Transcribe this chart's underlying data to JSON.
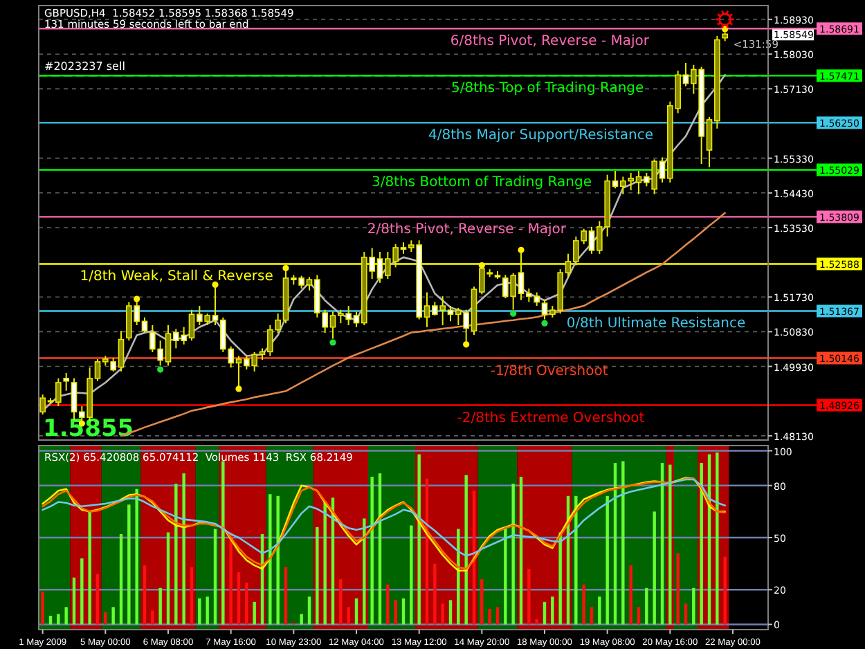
{
  "chart_data": [
    {
      "type": "candlestick",
      "title": "GBPUSD,H4  1.58452 1.58595 1.58368 1.58549",
      "subtitle": "131 minutes 59 seconds left to bar end",
      "categories": [
        null,
        null,
        null,
        null,
        null,
        null,
        null,
        null,
        null,
        null,
        null,
        null,
        null,
        null,
        null,
        null,
        null,
        null,
        null,
        null,
        null,
        null,
        null,
        null,
        null,
        null,
        null,
        null,
        null,
        null,
        null,
        null,
        null,
        null,
        null,
        null,
        null,
        null,
        null,
        null,
        null,
        null,
        null,
        null,
        null,
        null,
        null,
        null,
        null,
        null,
        null,
        null,
        null,
        null,
        null,
        null,
        null,
        null,
        null,
        null,
        null,
        null,
        null,
        null,
        null,
        null,
        null,
        null,
        null,
        null,
        null,
        null,
        null,
        null,
        null,
        null,
        null,
        null,
        null,
        null,
        null,
        null,
        null,
        null,
        null,
        null,
        null,
        null,
        null
      ],
      "ohlc": [
        [
          1.4875,
          1.492,
          1.4868,
          1.4911
        ],
        [
          1.4904,
          1.4911,
          1.4897,
          1.4904
        ],
        [
          1.49,
          1.4962,
          1.489,
          1.4951
        ],
        [
          1.4962,
          1.4976,
          1.493,
          1.4955
        ],
        [
          1.4951,
          1.4962,
          1.4853,
          1.4875
        ],
        [
          1.4875,
          1.489,
          1.4853,
          1.4861
        ],
        [
          1.4861,
          1.499,
          1.485,
          1.4962
        ],
        [
          1.4962,
          1.5012,
          1.4955,
          1.5005
        ],
        [
          1.5005,
          1.502,
          1.4995,
          1.5012
        ],
        [
          1.5005,
          1.5015,
          1.498,
          1.4984
        ],
        [
          1.4991,
          1.5085,
          1.498,
          1.5063
        ],
        [
          1.5067,
          1.516,
          1.506,
          1.515
        ],
        [
          1.515,
          1.5161,
          1.51,
          1.511
        ],
        [
          1.511,
          1.512,
          1.5081,
          1.5085
        ],
        [
          1.5081,
          1.51,
          1.503,
          1.5038
        ],
        [
          1.5038,
          1.506,
          1.4995,
          1.5009
        ],
        [
          1.5005,
          1.51,
          1.4995,
          1.5078
        ],
        [
          1.5081,
          1.509,
          1.504,
          1.506
        ],
        [
          1.5074,
          1.5095,
          1.505,
          1.506
        ],
        [
          1.5067,
          1.514,
          1.506,
          1.5128
        ],
        [
          1.5128,
          1.515,
          1.51,
          1.511
        ],
        [
          1.511,
          1.513,
          1.51,
          1.5125
        ],
        [
          1.5125,
          1.52,
          1.51,
          1.5113
        ],
        [
          1.5113,
          1.512,
          1.503,
          1.5038
        ],
        [
          1.5038,
          1.5045,
          1.499,
          1.5002
        ],
        [
          1.5002,
          1.502,
          1.494,
          1.5012
        ],
        [
          1.5012,
          1.502,
          1.4985,
          1.4995
        ],
        [
          1.4995,
          1.503,
          1.498,
          1.5024
        ],
        [
          1.5024,
          1.504,
          1.501,
          1.5031
        ],
        [
          1.5031,
          1.51,
          1.502,
          1.5088
        ],
        [
          1.5088,
          1.513,
          1.508,
          1.5113
        ],
        [
          1.5113,
          1.524,
          1.5105,
          1.5222
        ],
        [
          1.5222,
          1.523,
          1.5205,
          1.5218
        ],
        [
          1.5222,
          1.5228,
          1.5195,
          1.5204
        ],
        [
          1.5204,
          1.5225,
          1.519,
          1.5218
        ],
        [
          1.5218,
          1.523,
          1.512,
          1.5132
        ],
        [
          1.5132,
          1.514,
          1.508,
          1.5095
        ],
        [
          1.5095,
          1.5135,
          1.5065,
          1.5125
        ],
        [
          1.5125,
          1.514,
          1.5105,
          1.513
        ],
        [
          1.513,
          1.515,
          1.51,
          1.5115
        ],
        [
          1.5125,
          1.5135,
          1.5095,
          1.5106
        ],
        [
          1.5106,
          1.529,
          1.51,
          1.5276
        ],
        [
          1.5276,
          1.53,
          1.522,
          1.524
        ],
        [
          1.5272,
          1.529,
          1.521,
          1.5222
        ],
        [
          1.5229,
          1.529,
          1.522,
          1.5272
        ],
        [
          1.5265,
          1.531,
          1.525,
          1.5301
        ],
        [
          1.5301,
          1.5315,
          1.5285,
          1.5297
        ],
        [
          1.5301,
          1.532,
          1.529,
          1.5308
        ],
        [
          1.5308,
          1.532,
          1.5115,
          1.5121
        ],
        [
          1.5121,
          1.5185,
          1.5095,
          1.515
        ],
        [
          1.515,
          1.516,
          1.5125,
          1.5128
        ],
        [
          1.5139,
          1.5175,
          1.51,
          1.515
        ],
        [
          1.5139,
          1.515,
          1.511,
          1.5128
        ],
        [
          1.5128,
          1.5145,
          1.51,
          1.5139
        ],
        [
          1.5132,
          1.514,
          1.5056,
          1.5092
        ],
        [
          1.5085,
          1.52,
          1.5075,
          1.5193
        ],
        [
          1.5186,
          1.525,
          1.518,
          1.5247
        ],
        [
          1.5236,
          1.5245,
          1.5225,
          1.5236
        ],
        [
          1.5229,
          1.524,
          1.522,
          1.5225
        ],
        [
          1.5222,
          1.523,
          1.517,
          1.5175
        ],
        [
          1.5175,
          1.5235,
          1.514,
          1.5229
        ],
        [
          1.5236,
          1.529,
          1.5165,
          1.5182
        ],
        [
          1.5182,
          1.5195,
          1.516,
          1.5175
        ],
        [
          1.5175,
          1.5185,
          1.515,
          1.516
        ],
        [
          1.5157,
          1.5165,
          1.5115,
          1.5128
        ],
        [
          1.5128,
          1.515,
          1.512,
          1.5139
        ],
        [
          1.5139,
          1.5245,
          1.513,
          1.5236
        ],
        [
          1.5236,
          1.5285,
          1.5225,
          1.5265
        ],
        [
          1.5265,
          1.533,
          1.5255,
          1.5319
        ],
        [
          1.5319,
          1.535,
          1.531,
          1.5344
        ],
        [
          1.5344,
          1.5355,
          1.5285,
          1.5294
        ],
        [
          1.5294,
          1.537,
          1.5285,
          1.5355
        ],
        [
          1.5355,
          1.549,
          1.533,
          1.5474
        ],
        [
          1.5474,
          1.55,
          1.5455,
          1.546
        ],
        [
          1.546,
          1.5485,
          1.544,
          1.5474
        ],
        [
          1.5474,
          1.5495,
          1.545,
          1.5481
        ],
        [
          1.547,
          1.55,
          1.544,
          1.5485
        ],
        [
          1.5485,
          1.5495,
          1.546,
          1.547
        ],
        [
          1.5453,
          1.553,
          1.544,
          1.5525
        ],
        [
          1.5525,
          1.5535,
          1.547,
          1.5481
        ],
        [
          1.5481,
          1.568,
          1.547,
          1.5669
        ],
        [
          1.5662,
          1.576,
          1.565,
          1.5749
        ],
        [
          1.5749,
          1.578,
          1.572,
          1.5727
        ],
        [
          1.5727,
          1.5775,
          1.57,
          1.5763
        ],
        [
          1.5763,
          1.577,
          1.5518,
          1.559
        ],
        [
          1.5554,
          1.564,
          1.551,
          1.5633
        ],
        [
          1.563,
          1.585,
          1.561,
          1.584
        ],
        [
          1.58452,
          1.58595,
          1.58368,
          1.58549
        ],
        null
      ],
      "series": [
        {
          "type": "line",
          "color": "#b8b8b8",
          "values": [
            1.4878,
            1.4897,
            1.4915,
            1.492,
            1.4925,
            1.4924,
            1.4922,
            1.4937,
            1.4951,
            1.4969,
            1.4987,
            1.503,
            1.5074,
            1.508,
            1.5085,
            1.5072,
            1.506,
            1.5064,
            1.5067,
            1.5081,
            1.5095,
            1.5104,
            1.5113,
            1.5087,
            1.506,
            1.504,
            1.502,
            1.5022,
            1.5024,
            1.5049,
            1.5074,
            1.512,
            1.5167,
            1.5189,
            1.5211,
            1.5188,
            1.5164,
            1.5146,
            1.5128,
            1.512,
            1.5113,
            1.5153,
            1.5193,
            1.5224,
            1.5254,
            1.5265,
            1.5276,
            1.5271,
            1.5265,
            1.5224,
            1.5182,
            1.5164,
            1.5146,
            1.5139,
            1.5132,
            1.515,
            1.5168,
            1.5186,
            1.5204,
            1.5208,
            1.5211,
            1.5197,
            1.5182,
            1.5173,
            1.5164,
            1.5173,
            1.5182,
            1.5224,
            1.5265,
            1.5289,
            1.5312,
            1.5337,
            1.5362,
            1.5409,
            1.5456,
            1.5465,
            1.5474,
            1.5478,
            1.5481,
            1.5512,
            1.5543,
            1.5567,
            1.559,
            1.563,
            1.5669,
            1.5695,
            1.572,
            1.5749,
            null
          ]
        },
        {
          "type": "line",
          "color": "#e0884a",
          "values": [
            null,
            null,
            null,
            null,
            null,
            null,
            null,
            null,
            null,
            null,
            1.4813,
            1.482,
            1.4827,
            1.4835,
            1.4842,
            1.4849,
            1.4856,
            1.4863,
            1.487,
            1.4878,
            1.4882,
            1.4887,
            1.4891,
            1.4896,
            1.49,
            1.4904,
            1.4908,
            1.4913,
            1.4917,
            1.4921,
            1.4925,
            1.4929,
            1.494,
            1.4951,
            1.4962,
            1.4973,
            1.4984,
            1.4995,
            1.5005,
            1.5016,
            1.5024,
            1.5032,
            1.504,
            1.5048,
            1.5056,
            1.5064,
            1.5072,
            1.5081,
            1.5083,
            1.5086,
            1.5088,
            1.5091,
            1.5093,
            1.5096,
            1.5098,
            1.5101,
            1.5103,
            1.5106,
            1.5108,
            1.5111,
            1.5113,
            1.5116,
            1.5118,
            1.5121,
            1.5126,
            1.5131,
            1.5136,
            1.514,
            1.5145,
            1.515,
            1.5161,
            1.5172,
            1.5182,
            1.5193,
            1.5204,
            1.5215,
            1.5226,
            1.5237,
            1.5247,
            1.5258,
            1.5275,
            1.5291,
            1.5308,
            1.5324,
            1.5341,
            1.5358,
            1.5374,
            1.5391,
            null
          ]
        },
        {
          "type": "scatter",
          "color": "#ffee00",
          "marker": "circle",
          "values": [
            null,
            null,
            null,
            null,
            null,
            1.4845,
            null,
            null,
            null,
            null,
            null,
            null,
            1.5168,
            null,
            null,
            null,
            null,
            null,
            null,
            null,
            null,
            null,
            1.5205,
            null,
            null,
            1.4935,
            null,
            null,
            null,
            null,
            null,
            1.5248,
            null,
            null,
            null,
            null,
            null,
            null,
            null,
            null,
            null,
            null,
            null,
            null,
            null,
            null,
            null,
            null,
            null,
            null,
            null,
            null,
            null,
            null,
            1.505,
            null,
            1.5255,
            null,
            null,
            null,
            null,
            1.5295,
            null,
            null,
            null,
            null,
            null,
            null,
            null,
            null,
            null,
            null,
            null,
            null,
            null,
            null,
            null,
            null,
            null,
            null,
            null,
            null,
            null,
            null,
            null,
            null,
            null,
            1.5868,
            null
          ]
        },
        {
          "type": "scatter",
          "color": "#20e040",
          "marker": "circle",
          "values": [
            null,
            null,
            null,
            null,
            null,
            null,
            null,
            null,
            null,
            null,
            null,
            null,
            null,
            null,
            null,
            1.4985,
            null,
            null,
            null,
            null,
            null,
            null,
            null,
            null,
            null,
            null,
            null,
            null,
            null,
            null,
            null,
            null,
            null,
            null,
            null,
            null,
            null,
            1.5055,
            null,
            null,
            null,
            null,
            null,
            null,
            null,
            null,
            null,
            null,
            null,
            null,
            null,
            null,
            null,
            null,
            null,
            null,
            null,
            null,
            null,
            null,
            1.513,
            null,
            null,
            null,
            1.5105,
            null,
            null,
            null,
            null,
            null,
            null,
            null,
            null,
            null,
            null,
            null,
            null,
            null,
            null,
            null,
            null,
            null,
            null,
            null,
            null,
            null,
            null,
            null,
            null
          ]
        }
      ],
      "ylim": [
        1.4802,
        1.5929
      ],
      "yticks": [
        {
          "value": 1.4813,
          "label": "1.48130"
        },
        {
          "value": 1.4993,
          "label": "1.49930"
        },
        {
          "value": 1.5083,
          "label": "1.50830"
        },
        {
          "value": 1.5173,
          "label": "1.51730"
        },
        {
          "value": 1.5353,
          "label": "1.53530"
        },
        {
          "value": 1.5443,
          "label": "1.54430"
        },
        {
          "value": 1.5533,
          "label": "1.55330"
        },
        {
          "value": 1.5713,
          "label": "1.57130"
        },
        {
          "value": 1.5803,
          "label": "1.58030"
        },
        {
          "value": 1.5893,
          "label": "1.58930"
        }
      ],
      "grid": "y",
      "tick_labels": "y",
      "ref_lines": [
        {
          "axis": "y",
          "value": 1.57471,
          "label": "#2023237 sell",
          "color": "#00cc00",
          "line_style": "dashed"
        },
        {
          "axis": "y",
          "value": 1.58691,
          "label": "1.58691",
          "color": "#ff69b4"
        },
        {
          "axis": "y",
          "value": 1.57471,
          "label": "1.57471",
          "color": "#00ff00"
        },
        {
          "axis": "y",
          "value": 1.5625,
          "label": "1.56250",
          "color": "#40c8e8"
        },
        {
          "axis": "y",
          "value": 1.55029,
          "label": "1.55029",
          "color": "#00ff00"
        },
        {
          "axis": "y",
          "value": 1.53809,
          "label": "1.53809",
          "color": "#ff69b4"
        },
        {
          "axis": "y",
          "value": 1.52588,
          "label": "1.52588",
          "color": "#ffff00"
        },
        {
          "axis": "y",
          "value": 1.51367,
          "label": "1.51367",
          "color": "#40c8e8"
        },
        {
          "axis": "y",
          "value": 1.50146,
          "label": "1.50146",
          "color": "#ff4020"
        },
        {
          "axis": "y",
          "value": 1.48926,
          "label": "1.48926",
          "color": "#ff0000"
        }
      ],
      "annotations": [
        {
          "text": "6/8ths Pivot, Reverse - Major",
          "y": 1.58691
        },
        {
          "text": "5/8ths Top of Trading Range",
          "y": 1.57471
        },
        {
          "text": "4/8ths Major Support/Resistance",
          "y": 1.5625
        },
        {
          "text": "3/8ths Bottom of Trading Range",
          "y": 1.55029
        },
        {
          "text": "2/8ths Pivot, Reverse - Major",
          "y": 1.53809
        },
        {
          "text": "1/8th Weak, Stall & Reverse",
          "y": 1.52588
        },
        {
          "text": "0/8th Ultimate Resistance",
          "y": 1.51367
        },
        {
          "text": "-1/8th Overshoot",
          "y": 1.50146
        },
        {
          "text": "-2/8ths Extreme Overshoot",
          "y": 1.48926
        },
        "1.58549",
        "<131:59",
        "1.5855"
      ]
    },
    {
      "type": "bar",
      "title": "RSX(2) 65.420808 65.074112  Volumes 1143  RSX 68.2149",
      "categories": [
        "1 May 2009",
        null,
        null,
        null,
        null,
        null,
        null,
        null,
        "5 May 00:00",
        null,
        null,
        null,
        null,
        null,
        null,
        null,
        "6 May 08:00",
        null,
        null,
        null,
        null,
        null,
        null,
        null,
        "7 May 16:00",
        null,
        null,
        null,
        null,
        null,
        null,
        null,
        "10 May 23:00",
        null,
        null,
        null,
        null,
        null,
        null,
        null,
        "12 May 04:00",
        null,
        null,
        null,
        null,
        null,
        null,
        null,
        "13 May 12:00",
        null,
        null,
        null,
        null,
        null,
        null,
        null,
        "14 May 20:00",
        null,
        null,
        null,
        null,
        null,
        null,
        null,
        "18 May 00:00",
        null,
        null,
        null,
        null,
        null,
        null,
        null,
        "19 May 08:00",
        null,
        null,
        null,
        null,
        null,
        null,
        null,
        "20 May 16:00",
        null,
        null,
        null,
        null,
        null,
        null,
        null,
        "22 May 00:00"
      ],
      "series": [
        {
          "type": "bar",
          "color": "#66ff33",
          "values": [
            null,
            5,
            6,
            10,
            27,
            38,
            65,
            null,
            null,
            10,
            52,
            69,
            78,
            null,
            null,
            21,
            53,
            81,
            87,
            null,
            15,
            16,
            55,
            94,
            null,
            null,
            null,
            13,
            52,
            75,
            74,
            null,
            null,
            6,
            16,
            56,
            71,
            73,
            null,
            null,
            15,
            61,
            85,
            87,
            null,
            null,
            15,
            57,
            98,
            null,
            null,
            null,
            14,
            55,
            86,
            null,
            null,
            null,
            null,
            56,
            81,
            85,
            null,
            null,
            13,
            16,
            53,
            74,
            74,
            null,
            null,
            16,
            74,
            93,
            94,
            null,
            null,
            21,
            65,
            93,
            92,
            null,
            null,
            21,
            93,
            98,
            99,
            null,
            null
          ]
        },
        {
          "type": "bar",
          "color": "#ff1010",
          "values": [
            19,
            null,
            null,
            null,
            null,
            null,
            null,
            29,
            7,
            null,
            null,
            null,
            null,
            34,
            8,
            null,
            null,
            null,
            null,
            33,
            null,
            null,
            null,
            null,
            53,
            30,
            24,
            null,
            null,
            null,
            null,
            33,
            1,
            null,
            null,
            null,
            null,
            null,
            26,
            10,
            null,
            null,
            null,
            null,
            23,
            14,
            null,
            null,
            null,
            84,
            35,
            12,
            null,
            null,
            null,
            77,
            26,
            9,
            10,
            null,
            null,
            null,
            32,
            3,
            null,
            null,
            null,
            null,
            null,
            23,
            10,
            null,
            null,
            null,
            null,
            34,
            10,
            null,
            null,
            null,
            null,
            41,
            12,
            null,
            null,
            null,
            null,
            39,
            null
          ]
        },
        {
          "type": "line",
          "color": "#ffee00",
          "values": [
            69.5,
            73,
            77,
            78,
            70,
            66,
            65,
            66,
            67.5,
            69.5,
            72,
            74.5,
            75,
            73.5,
            70,
            65,
            60,
            57,
            56,
            57,
            58.5,
            58,
            57,
            56,
            49,
            42,
            37,
            34,
            32,
            38,
            46,
            58,
            70,
            80,
            79,
            77,
            70,
            64,
            57,
            51,
            46,
            50,
            56,
            62,
            66,
            68.5,
            70.5,
            66,
            59,
            52,
            46,
            40,
            35,
            31,
            31,
            38,
            45,
            51,
            54.5,
            56,
            57.5,
            56,
            54,
            50,
            46,
            44,
            52,
            60,
            67,
            72,
            74,
            76,
            77.5,
            78.5,
            79,
            80,
            81,
            82,
            82.5,
            82,
            81.5,
            83,
            84.5,
            84,
            78,
            68,
            65,
            65,
            null
          ]
        },
        {
          "type": "line",
          "color": "#ff6a00",
          "values": [
            68,
            71,
            75,
            77,
            72,
            67,
            65,
            65.5,
            67,
            69,
            71,
            73.5,
            74.5,
            73.5,
            71,
            66,
            62,
            58.5,
            57,
            57,
            58,
            58,
            57,
            56,
            50,
            44,
            39,
            36,
            34,
            38,
            45,
            56,
            67,
            77,
            79,
            77,
            71,
            65,
            59,
            53,
            48,
            50,
            55,
            61,
            65,
            68,
            70,
            67,
            61,
            54,
            48,
            42,
            37,
            33,
            32,
            37,
            44,
            50,
            53.5,
            55.5,
            57,
            56,
            54,
            51,
            47,
            45,
            51,
            58,
            65,
            70,
            73,
            75,
            77,
            78,
            79,
            80,
            80.5,
            81.5,
            82,
            82,
            81.5,
            82.5,
            84,
            84,
            79,
            70,
            65,
            64.5,
            null
          ]
        },
        {
          "type": "line",
          "color": "#70c8e8",
          "values": [
            66,
            68,
            70.5,
            70,
            68.5,
            68,
            68.5,
            69,
            69.5,
            70.5,
            71.5,
            72.5,
            72.5,
            70.5,
            68,
            66,
            64,
            62,
            60.5,
            60,
            59.5,
            59,
            58,
            55,
            52,
            50,
            47,
            44,
            41,
            43,
            46.5,
            52,
            58,
            64,
            68,
            66.5,
            64,
            61,
            58,
            55.5,
            54.5,
            55.5,
            57,
            59.5,
            61.5,
            63.5,
            66,
            65,
            61.5,
            57.5,
            54,
            50,
            46,
            42,
            39.5,
            41,
            43.5,
            45.5,
            47.5,
            49.5,
            51.5,
            51,
            50.5,
            50,
            49,
            48,
            47.5,
            51,
            55,
            60,
            63.5,
            67,
            70,
            73,
            75,
            76.5,
            77.5,
            78.5,
            79.5,
            80.5,
            81.5,
            82.5,
            83.5,
            83.5,
            80,
            72.5,
            70,
            68.5,
            null
          ]
        }
      ],
      "ylim": [
        -3,
        103
      ],
      "yticks": [
        0,
        20,
        50,
        80,
        100
      ],
      "grid": "y"
    }
  ]
}
